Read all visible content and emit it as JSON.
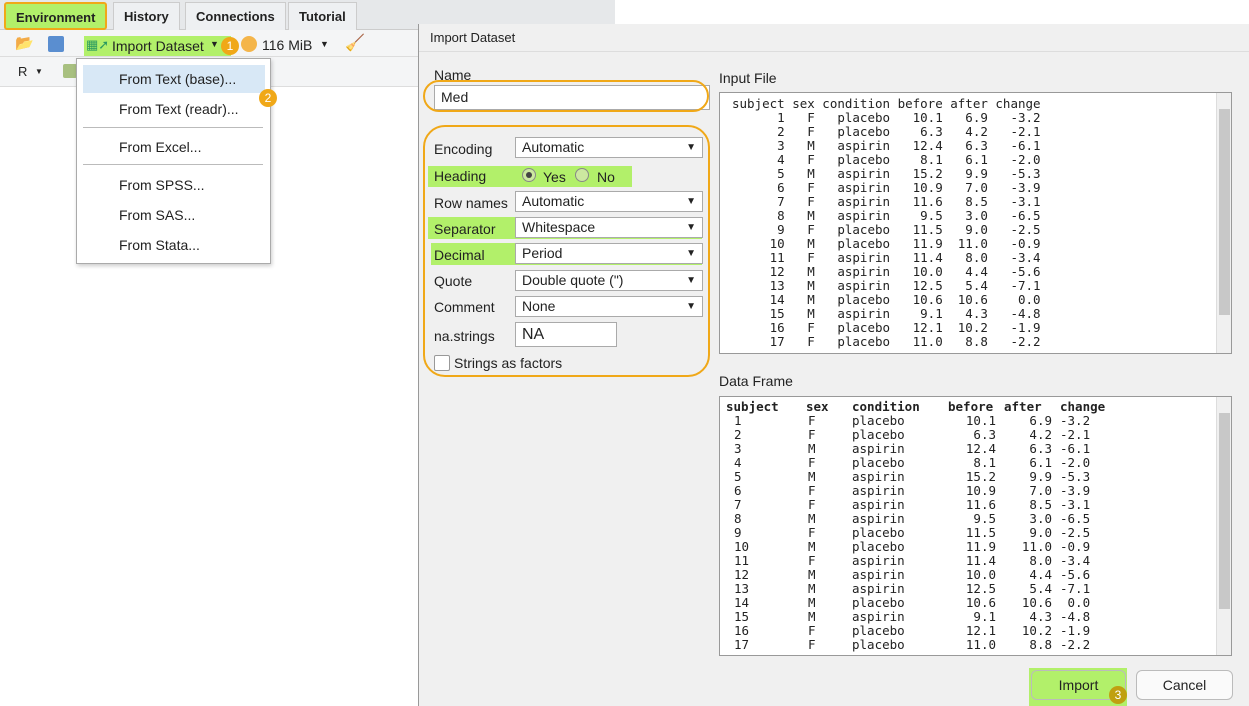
{
  "tabs": [
    "Environment",
    "History",
    "Connections",
    "Tutorial"
  ],
  "toolbar": {
    "import_dataset": "Import Dataset",
    "memory": "116 MiB",
    "language": "R"
  },
  "menu": {
    "items": [
      "From Text (base)...",
      "From Text (readr)...",
      "From Excel...",
      "From SPSS...",
      "From SAS...",
      "From Stata..."
    ]
  },
  "badges": [
    "1",
    "2",
    "3"
  ],
  "dialog": {
    "title": "Import Dataset",
    "name_label": "Name",
    "name_value": "Med",
    "encoding_label": "Encoding",
    "encoding_value": "Automatic",
    "heading_label": "Heading",
    "heading_yes": "Yes",
    "heading_no": "No",
    "heading_selected": "Yes",
    "rownames_label": "Row names",
    "rownames_value": "Automatic",
    "separator_label": "Separator",
    "separator_value": "Whitespace",
    "decimal_label": "Decimal",
    "decimal_value": "Period",
    "quote_label": "Quote",
    "quote_value": "Double quote (\")",
    "comment_label": "Comment",
    "comment_value": "None",
    "nastrings_label": "na.strings",
    "nastrings_value": "NA",
    "strings_factors_label": "Strings as factors",
    "strings_factors_checked": false,
    "input_file_label": "Input File",
    "data_frame_label": "Data Frame",
    "import_button": "Import",
    "cancel_button": "Cancel"
  },
  "columns": [
    "subject",
    "sex",
    "condition",
    "before",
    "after",
    "change"
  ],
  "rows": [
    [
      "1",
      "F",
      "placebo",
      "10.1",
      "6.9",
      "-3.2"
    ],
    [
      "2",
      "F",
      "placebo",
      "6.3",
      "4.2",
      "-2.1"
    ],
    [
      "3",
      "M",
      "aspirin",
      "12.4",
      "6.3",
      "-6.1"
    ],
    [
      "4",
      "F",
      "placebo",
      "8.1",
      "6.1",
      "-2.0"
    ],
    [
      "5",
      "M",
      "aspirin",
      "15.2",
      "9.9",
      "-5.3"
    ],
    [
      "6",
      "F",
      "aspirin",
      "10.9",
      "7.0",
      "-3.9"
    ],
    [
      "7",
      "F",
      "aspirin",
      "11.6",
      "8.5",
      "-3.1"
    ],
    [
      "8",
      "M",
      "aspirin",
      "9.5",
      "3.0",
      "-6.5"
    ],
    [
      "9",
      "F",
      "placebo",
      "11.5",
      "9.0",
      "-2.5"
    ],
    [
      "10",
      "M",
      "placebo",
      "11.9",
      "11.0",
      "-0.9"
    ],
    [
      "11",
      "F",
      "aspirin",
      "11.4",
      "8.0",
      "-3.4"
    ],
    [
      "12",
      "M",
      "aspirin",
      "10.0",
      "4.4",
      "-5.6"
    ],
    [
      "13",
      "M",
      "aspirin",
      "12.5",
      "5.4",
      "-7.1"
    ],
    [
      "14",
      "M",
      "placebo",
      "10.6",
      "10.6",
      "0.0"
    ],
    [
      "15",
      "M",
      "aspirin",
      "9.1",
      "4.3",
      "-4.8"
    ],
    [
      "16",
      "F",
      "placebo",
      "12.1",
      "10.2",
      "-1.9"
    ],
    [
      "17",
      "F",
      "placebo",
      "11.0",
      "8.8",
      "-2.2"
    ]
  ],
  "colors": {
    "highlight": "#b2f06a",
    "annotation": "#f0a818"
  }
}
